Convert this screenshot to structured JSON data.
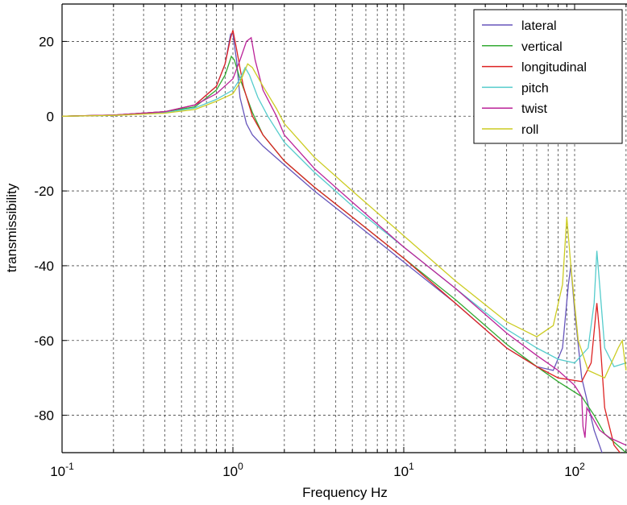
{
  "chart_data": {
    "type": "line",
    "xlabel": "Frequency Hz",
    "ylabel": "transmissibility",
    "x_scale": "log",
    "xlim": [
      0.1,
      200
    ],
    "ylim": [
      -90,
      30
    ],
    "grid": true,
    "legend_position": "top-right",
    "x_ticks": [
      {
        "value": 0.1,
        "base": "10",
        "exp": "-1"
      },
      {
        "value": 1,
        "base": "10",
        "exp": "0"
      },
      {
        "value": 10,
        "base": "10",
        "exp": "1"
      },
      {
        "value": 100,
        "base": "10",
        "exp": "2"
      }
    ],
    "y_ticks": [
      {
        "value": 20,
        "label": "20"
      },
      {
        "value": 0,
        "label": "0"
      },
      {
        "value": -20,
        "label": "-20"
      },
      {
        "value": -40,
        "label": "-40"
      },
      {
        "value": -60,
        "label": "-60"
      },
      {
        "value": -80,
        "label": "-80"
      }
    ],
    "series": [
      {
        "name": "lateral",
        "color": "#6655bb",
        "points": [
          [
            0.1,
            0
          ],
          [
            0.2,
            0.3
          ],
          [
            0.4,
            1.2
          ],
          [
            0.6,
            3
          ],
          [
            0.8,
            8
          ],
          [
            0.9,
            14
          ],
          [
            0.97,
            22
          ],
          [
            1.0,
            22
          ],
          [
            1.05,
            15
          ],
          [
            1.1,
            5
          ],
          [
            1.2,
            -2
          ],
          [
            1.3,
            -5
          ],
          [
            1.5,
            -8
          ],
          [
            2,
            -13
          ],
          [
            3,
            -20
          ],
          [
            5,
            -28
          ],
          [
            10,
            -39
          ],
          [
            20,
            -50
          ],
          [
            40,
            -62
          ],
          [
            60,
            -67
          ],
          [
            75,
            -68
          ],
          [
            85,
            -62
          ],
          [
            92,
            -45
          ],
          [
            95,
            -40
          ],
          [
            100,
            -52
          ],
          [
            110,
            -70
          ],
          [
            130,
            -84
          ],
          [
            150,
            -92
          ]
        ]
      },
      {
        "name": "vertical",
        "color": "#33aa33",
        "points": [
          [
            0.1,
            0
          ],
          [
            0.2,
            0.3
          ],
          [
            0.4,
            1.2
          ],
          [
            0.6,
            2.5
          ],
          [
            0.8,
            7
          ],
          [
            0.9,
            11
          ],
          [
            0.98,
            16
          ],
          [
            1.02,
            15
          ],
          [
            1.1,
            10
          ],
          [
            1.3,
            1
          ],
          [
            1.5,
            -5
          ],
          [
            2,
            -12
          ],
          [
            3,
            -19
          ],
          [
            5,
            -27
          ],
          [
            10,
            -38
          ],
          [
            20,
            -49
          ],
          [
            40,
            -61
          ],
          [
            60,
            -67
          ],
          [
            80,
            -71
          ],
          [
            110,
            -75
          ],
          [
            130,
            -80
          ],
          [
            150,
            -85
          ],
          [
            200,
            -90
          ]
        ]
      },
      {
        "name": "longitudinal",
        "color": "#dd2222",
        "points": [
          [
            0.1,
            0
          ],
          [
            0.2,
            0.3
          ],
          [
            0.4,
            1.2
          ],
          [
            0.6,
            3
          ],
          [
            0.8,
            8
          ],
          [
            0.9,
            14
          ],
          [
            0.97,
            21
          ],
          [
            1.0,
            23
          ],
          [
            1.05,
            18
          ],
          [
            1.15,
            8
          ],
          [
            1.3,
            0
          ],
          [
            1.5,
            -5
          ],
          [
            2,
            -12
          ],
          [
            3,
            -19
          ],
          [
            5,
            -27
          ],
          [
            10,
            -38
          ],
          [
            20,
            -50
          ],
          [
            40,
            -62
          ],
          [
            60,
            -67
          ],
          [
            80,
            -70
          ],
          [
            110,
            -71
          ],
          [
            125,
            -66
          ],
          [
            135,
            -50
          ],
          [
            140,
            -58
          ],
          [
            150,
            -78
          ],
          [
            170,
            -88
          ],
          [
            200,
            -92
          ]
        ]
      },
      {
        "name": "pitch",
        "color": "#55cccc",
        "points": [
          [
            0.1,
            0
          ],
          [
            0.2,
            0.2
          ],
          [
            0.4,
            1
          ],
          [
            0.6,
            2.2
          ],
          [
            0.8,
            4.5
          ],
          [
            1.0,
            7
          ],
          [
            1.1,
            10
          ],
          [
            1.18,
            13
          ],
          [
            1.25,
            11
          ],
          [
            1.4,
            5
          ],
          [
            1.6,
            0
          ],
          [
            2,
            -7
          ],
          [
            3,
            -15
          ],
          [
            5,
            -24
          ],
          [
            10,
            -35
          ],
          [
            20,
            -46
          ],
          [
            40,
            -57
          ],
          [
            60,
            -62
          ],
          [
            80,
            -65
          ],
          [
            100,
            -66
          ],
          [
            120,
            -62
          ],
          [
            130,
            -50
          ],
          [
            135,
            -36
          ],
          [
            140,
            -45
          ],
          [
            150,
            -62
          ],
          [
            170,
            -67
          ],
          [
            200,
            -66
          ]
        ]
      },
      {
        "name": "twist",
        "color": "#bb2299",
        "points": [
          [
            0.1,
            0
          ],
          [
            0.2,
            0.3
          ],
          [
            0.4,
            1.2
          ],
          [
            0.6,
            3
          ],
          [
            0.8,
            6
          ],
          [
            1.0,
            10
          ],
          [
            1.1,
            15
          ],
          [
            1.2,
            20
          ],
          [
            1.28,
            21
          ],
          [
            1.35,
            15
          ],
          [
            1.5,
            7
          ],
          [
            1.8,
            0
          ],
          [
            2,
            -5
          ],
          [
            3,
            -14
          ],
          [
            5,
            -23
          ],
          [
            10,
            -35
          ],
          [
            20,
            -46
          ],
          [
            40,
            -58
          ],
          [
            60,
            -64
          ],
          [
            80,
            -68
          ],
          [
            100,
            -72
          ],
          [
            110,
            -75
          ],
          [
            112,
            -83
          ],
          [
            115,
            -86
          ],
          [
            118,
            -78
          ],
          [
            125,
            -80
          ],
          [
            140,
            -84
          ],
          [
            160,
            -86
          ],
          [
            200,
            -88
          ]
        ]
      },
      {
        "name": "roll",
        "color": "#cccc22",
        "points": [
          [
            0.1,
            0
          ],
          [
            0.2,
            0.2
          ],
          [
            0.4,
            0.8
          ],
          [
            0.6,
            1.8
          ],
          [
            0.8,
            4
          ],
          [
            1.0,
            6
          ],
          [
            1.1,
            9
          ],
          [
            1.22,
            14
          ],
          [
            1.3,
            13
          ],
          [
            1.5,
            8
          ],
          [
            1.8,
            2
          ],
          [
            2,
            -2
          ],
          [
            3,
            -11
          ],
          [
            5,
            -20
          ],
          [
            10,
            -32
          ],
          [
            20,
            -44
          ],
          [
            40,
            -55
          ],
          [
            60,
            -59
          ],
          [
            75,
            -56
          ],
          [
            85,
            -45
          ],
          [
            90,
            -27
          ],
          [
            95,
            -40
          ],
          [
            105,
            -60
          ],
          [
            120,
            -68
          ],
          [
            150,
            -70
          ],
          [
            180,
            -62
          ],
          [
            190,
            -60
          ],
          [
            200,
            -68
          ]
        ]
      }
    ]
  }
}
